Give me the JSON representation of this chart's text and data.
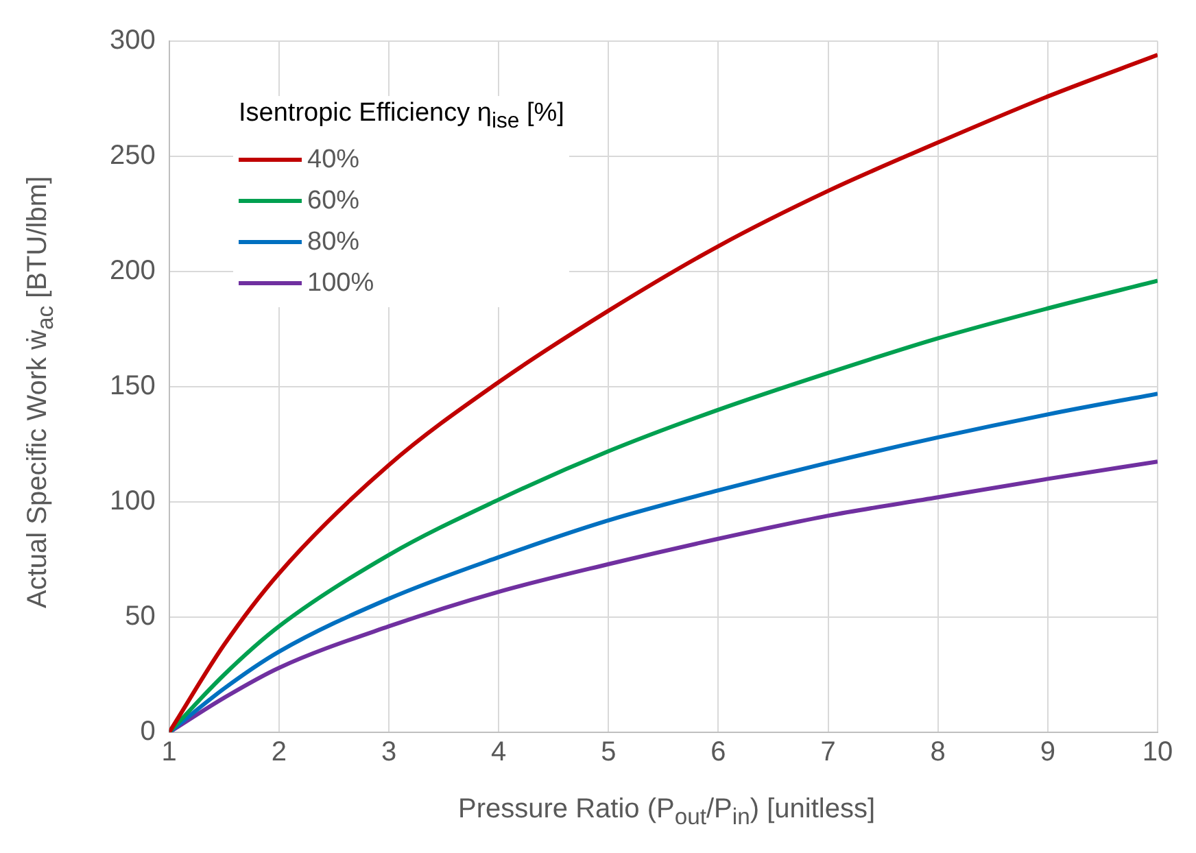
{
  "chart_data": {
    "type": "line",
    "xlabel": "Pressure Ratio (P$_{out}$/P$_{in}$) [unitless]",
    "ylabel": "Actual Specific Work ẇ$_{ac}$ [BTU/lbm]",
    "legend_title": "Isentropic Efficiency η$_{ise}$ [%]",
    "x": [
      1,
      1.5,
      2,
      3,
      4,
      5,
      6,
      7,
      8,
      9,
      10
    ],
    "series": [
      {
        "name": "40%",
        "color": "#c00000",
        "values": [
          0,
          38,
          69,
          116,
          152,
          183,
          211,
          235,
          256,
          276,
          294
        ]
      },
      {
        "name": "60%",
        "color": "#00a050",
        "values": [
          0,
          25,
          46,
          77,
          101,
          122,
          140,
          156,
          171,
          184,
          196
        ]
      },
      {
        "name": "80%",
        "color": "#0070c0",
        "values": [
          0,
          19,
          35,
          58,
          76,
          92,
          105,
          117,
          128,
          138,
          147
        ]
      },
      {
        "name": "100%",
        "color": "#7030a0",
        "values": [
          0,
          15,
          28,
          46,
          61,
          73,
          84,
          94,
          102,
          110,
          117.5
        ]
      }
    ],
    "xlim": [
      1,
      10
    ],
    "xticks": [
      1,
      2,
      3,
      4,
      5,
      6,
      7,
      8,
      9,
      10
    ],
    "ylim": [
      0,
      300
    ],
    "yticks": [
      0,
      50,
      100,
      150,
      200,
      250,
      300
    ],
    "grid": true,
    "legend": "top left",
    "marker": "none",
    "line_style": "solid"
  }
}
